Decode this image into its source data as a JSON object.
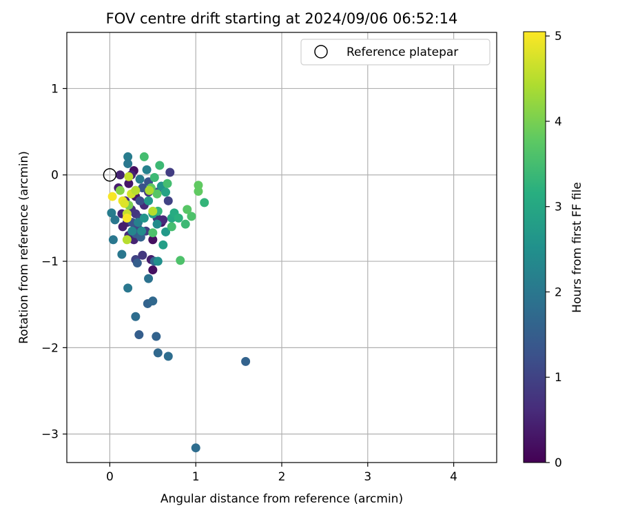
{
  "chart_data": {
    "type": "scatter",
    "title": "FOV centre drift starting at 2024/09/06 06:52:14",
    "xlabel": "Angular distance from reference (arcmin)",
    "ylabel": "Rotation from reference (arcmin)",
    "xlim": [
      -0.5,
      4.5
    ],
    "ylim": [
      -3.33,
      1.65
    ],
    "xticks": [
      0,
      1,
      2,
      3,
      4
    ],
    "yticks": [
      1,
      0,
      -1,
      -2,
      -3
    ],
    "xtick_labels": [
      "0",
      "1",
      "2",
      "3",
      "4"
    ],
    "ytick_labels": [
      "1",
      "0",
      "−1",
      "−2",
      "−3"
    ],
    "grid": true,
    "legend": {
      "label": "Reference platepar",
      "placement": "top-right"
    },
    "reference_point": {
      "x": 0,
      "y": 0
    },
    "colorbar": {
      "label": "Hours from first FF file",
      "range": [
        0,
        5.05
      ],
      "ticks": [
        0,
        1,
        2,
        3,
        4,
        5
      ],
      "tick_labels": [
        "0",
        "1",
        "2",
        "3",
        "4",
        "5"
      ],
      "colormap": "viridis"
    },
    "points": [
      {
        "x": 0.12,
        "y": 0.0,
        "h": 0.5
      },
      {
        "x": 0.28,
        "y": 0.05,
        "h": 0.2
      },
      {
        "x": 0.22,
        "y": -0.1,
        "h": 0.3
      },
      {
        "x": 0.1,
        "y": -0.15,
        "h": 0.4
      },
      {
        "x": 0.18,
        "y": -0.3,
        "h": 0.6
      },
      {
        "x": 0.25,
        "y": -0.4,
        "h": 0.7
      },
      {
        "x": 0.3,
        "y": -0.45,
        "h": 0.8
      },
      {
        "x": 0.2,
        "y": -0.55,
        "h": 0.5
      },
      {
        "x": 0.15,
        "y": -0.6,
        "h": 0.4
      },
      {
        "x": 0.35,
        "y": -0.5,
        "h": 0.9
      },
      {
        "x": 0.4,
        "y": -0.35,
        "h": 0.6
      },
      {
        "x": 0.45,
        "y": -0.2,
        "h": 0.8
      },
      {
        "x": 0.3,
        "y": -0.25,
        "h": 0.3
      },
      {
        "x": 0.22,
        "y": -0.7,
        "h": 0.6
      },
      {
        "x": 0.28,
        "y": -0.75,
        "h": 0.5
      },
      {
        "x": 0.5,
        "y": -0.75,
        "h": 0.2
      },
      {
        "x": 0.48,
        "y": -0.98,
        "h": 0.4
      },
      {
        "x": 0.5,
        "y": -1.1,
        "h": 0.2
      },
      {
        "x": 0.3,
        "y": -0.98,
        "h": 1.0
      },
      {
        "x": 0.38,
        "y": -0.93,
        "h": 0.8
      },
      {
        "x": 0.55,
        "y": -0.5,
        "h": 0.7
      },
      {
        "x": 0.6,
        "y": -0.55,
        "h": 0.3
      },
      {
        "x": 0.62,
        "y": -0.52,
        "h": 0.6
      },
      {
        "x": 0.68,
        "y": -0.3,
        "h": 1.0
      },
      {
        "x": 0.7,
        "y": 0.03,
        "h": 0.9
      },
      {
        "x": 0.25,
        "y": 0.0,
        "h": 0.5
      },
      {
        "x": 0.14,
        "y": -0.45,
        "h": 0.5
      },
      {
        "x": 0.32,
        "y": -0.6,
        "h": 1.1
      },
      {
        "x": 0.42,
        "y": -0.65,
        "h": 0.9
      },
      {
        "x": 0.2,
        "y": -0.45,
        "h": 1.2
      },
      {
        "x": 0.26,
        "y": -0.55,
        "h": 1.3
      },
      {
        "x": 0.35,
        "y": -0.3,
        "h": 1.2
      },
      {
        "x": 0.45,
        "y": -0.08,
        "h": 1.3
      },
      {
        "x": 0.38,
        "y": -0.15,
        "h": 1.3
      },
      {
        "x": 0.55,
        "y": -0.2,
        "h": 1.4
      },
      {
        "x": 0.3,
        "y": -0.68,
        "h": 1.5
      },
      {
        "x": 0.36,
        "y": -0.72,
        "h": 1.6
      },
      {
        "x": 0.32,
        "y": -1.02,
        "h": 1.5
      },
      {
        "x": 0.52,
        "y": -1.0,
        "h": 1.7
      },
      {
        "x": 0.44,
        "y": -1.49,
        "h": 1.6
      },
      {
        "x": 0.5,
        "y": -1.46,
        "h": 1.7
      },
      {
        "x": 0.3,
        "y": -1.64,
        "h": 1.8
      },
      {
        "x": 0.34,
        "y": -1.85,
        "h": 1.5
      },
      {
        "x": 0.54,
        "y": -1.87,
        "h": 1.6
      },
      {
        "x": 0.56,
        "y": -2.06,
        "h": 1.7
      },
      {
        "x": 0.68,
        "y": -2.1,
        "h": 1.8
      },
      {
        "x": 1.58,
        "y": -2.16,
        "h": 1.6
      },
      {
        "x": 1.0,
        "y": -3.16,
        "h": 1.8
      },
      {
        "x": 0.45,
        "y": -1.2,
        "h": 1.9
      },
      {
        "x": 0.21,
        "y": -1.31,
        "h": 2.0
      },
      {
        "x": 0.14,
        "y": -0.92,
        "h": 2.0
      },
      {
        "x": 0.04,
        "y": -0.75,
        "h": 2.0
      },
      {
        "x": 0.02,
        "y": -0.44,
        "h": 2.1
      },
      {
        "x": 0.06,
        "y": -0.52,
        "h": 2.0
      },
      {
        "x": 0.21,
        "y": 0.21,
        "h": 2.1
      },
      {
        "x": 0.21,
        "y": 0.13,
        "h": 2.0
      },
      {
        "x": 0.43,
        "y": 0.06,
        "h": 2.2
      },
      {
        "x": 0.35,
        "y": -0.05,
        "h": 2.1
      },
      {
        "x": 0.3,
        "y": -0.18,
        "h": 2.2
      },
      {
        "x": 0.26,
        "y": -0.65,
        "h": 2.3
      },
      {
        "x": 0.33,
        "y": -0.55,
        "h": 2.2
      },
      {
        "x": 0.37,
        "y": -0.65,
        "h": 2.4
      },
      {
        "x": 0.55,
        "y": -0.57,
        "h": 2.4
      },
      {
        "x": 0.56,
        "y": -1.0,
        "h": 2.5
      },
      {
        "x": 0.6,
        "y": -0.13,
        "h": 2.6
      },
      {
        "x": 0.65,
        "y": -0.66,
        "h": 2.7
      },
      {
        "x": 0.62,
        "y": -0.81,
        "h": 2.8
      },
      {
        "x": 0.4,
        "y": -0.5,
        "h": 2.6
      },
      {
        "x": 0.45,
        "y": -0.3,
        "h": 2.7
      },
      {
        "x": 0.5,
        "y": -0.45,
        "h": 2.8
      },
      {
        "x": 0.65,
        "y": -0.2,
        "h": 2.9
      },
      {
        "x": 0.72,
        "y": -0.5,
        "h": 3.0
      },
      {
        "x": 0.75,
        "y": -0.44,
        "h": 3.1
      },
      {
        "x": 0.8,
        "y": -0.5,
        "h": 3.2
      },
      {
        "x": 1.1,
        "y": -0.32,
        "h": 3.3
      },
      {
        "x": 0.88,
        "y": -0.57,
        "h": 3.4
      },
      {
        "x": 0.56,
        "y": -0.42,
        "h": 3.3
      },
      {
        "x": 0.58,
        "y": 0.11,
        "h": 3.4
      },
      {
        "x": 0.4,
        "y": 0.21,
        "h": 3.5
      },
      {
        "x": 0.52,
        "y": -0.03,
        "h": 3.4
      },
      {
        "x": 0.67,
        "y": -0.1,
        "h": 3.5
      },
      {
        "x": 0.72,
        "y": -0.6,
        "h": 3.5
      },
      {
        "x": 0.5,
        "y": -0.67,
        "h": 3.6
      },
      {
        "x": 0.55,
        "y": -0.22,
        "h": 3.7
      },
      {
        "x": 0.82,
        "y": -0.99,
        "h": 3.6
      },
      {
        "x": 0.95,
        "y": -0.48,
        "h": 3.6
      },
      {
        "x": 0.9,
        "y": -0.4,
        "h": 3.7
      },
      {
        "x": 1.03,
        "y": -0.12,
        "h": 3.8
      },
      {
        "x": 1.03,
        "y": -0.19,
        "h": 3.8
      },
      {
        "x": 0.48,
        "y": -0.15,
        "h": 3.8
      },
      {
        "x": 0.22,
        "y": -0.35,
        "h": 4.0
      },
      {
        "x": 0.12,
        "y": -0.18,
        "h": 4.1
      },
      {
        "x": 0.2,
        "y": -0.75,
        "h": 4.5
      },
      {
        "x": 0.2,
        "y": -0.45,
        "h": 4.6
      },
      {
        "x": 0.22,
        "y": -0.02,
        "h": 4.6
      },
      {
        "x": 0.25,
        "y": -0.22,
        "h": 4.7
      },
      {
        "x": 0.3,
        "y": -0.18,
        "h": 4.5
      },
      {
        "x": 0.46,
        "y": -0.18,
        "h": 4.4
      },
      {
        "x": 0.5,
        "y": -0.42,
        "h": 4.5
      },
      {
        "x": 0.15,
        "y": -0.3,
        "h": 4.9
      },
      {
        "x": 0.17,
        "y": -0.33,
        "h": 4.8
      },
      {
        "x": 0.2,
        "y": -0.5,
        "h": 5.0
      },
      {
        "x": 0.03,
        "y": -0.25,
        "h": 5.0
      }
    ]
  }
}
